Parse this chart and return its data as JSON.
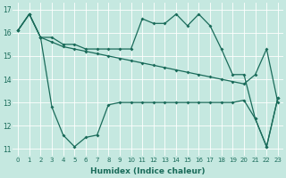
{
  "xlabel": "Humidex (Indice chaleur)",
  "background_color": "#c5e8e0",
  "grid_color": "#ffffff",
  "line_color": "#1a6b5a",
  "xlim": [
    -0.5,
    23.5
  ],
  "ylim": [
    10.7,
    17.3
  ],
  "xticks": [
    0,
    1,
    2,
    3,
    4,
    5,
    6,
    7,
    8,
    9,
    10,
    11,
    12,
    13,
    14,
    15,
    16,
    17,
    18,
    19,
    20,
    21,
    22,
    23
  ],
  "yticks": [
    11,
    12,
    13,
    14,
    15,
    16,
    17
  ],
  "line1_y": [
    16.1,
    16.8,
    15.8,
    15.6,
    15.4,
    15.3,
    15.2,
    15.1,
    15.0,
    14.9,
    14.8,
    14.7,
    14.6,
    14.5,
    14.4,
    14.3,
    14.2,
    14.1,
    14.0,
    13.9,
    13.8,
    14.2,
    15.3,
    13.0
  ],
  "line2_y": [
    16.1,
    16.8,
    15.8,
    12.8,
    11.6,
    11.1,
    11.5,
    11.6,
    12.9,
    13.0,
    13.0,
    13.0,
    13.0,
    13.0,
    13.0,
    13.0,
    13.0,
    13.0,
    13.0,
    13.0,
    13.1,
    12.3,
    11.1,
    13.2
  ],
  "line3_y": [
    16.1,
    16.8,
    15.8,
    15.8,
    15.5,
    15.5,
    15.3,
    15.3,
    15.3,
    15.3,
    15.3,
    16.6,
    16.4,
    16.4,
    16.8,
    16.3,
    16.8,
    16.3,
    15.3,
    14.2,
    14.2,
    12.3,
    11.1,
    13.2
  ]
}
